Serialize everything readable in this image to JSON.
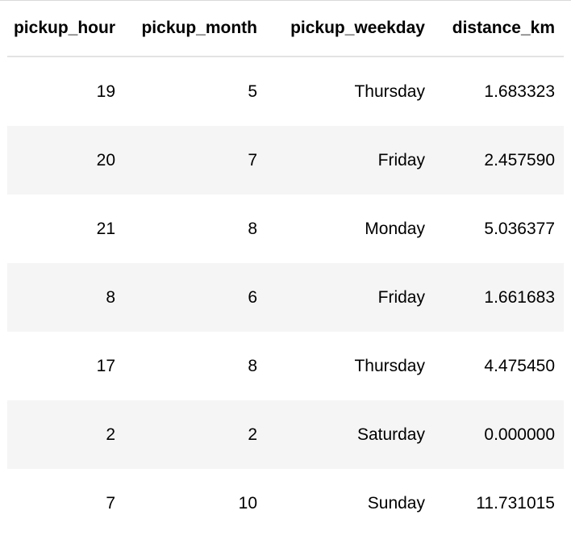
{
  "table": {
    "columns": [
      "pickup_hour",
      "pickup_month",
      "pickup_weekday",
      "distance_km"
    ],
    "rows": [
      [
        "19",
        "5",
        "Thursday",
        "1.683323"
      ],
      [
        "20",
        "7",
        "Friday",
        "2.457590"
      ],
      [
        "21",
        "8",
        "Monday",
        "5.036377"
      ],
      [
        "8",
        "6",
        "Friday",
        "1.661683"
      ],
      [
        "17",
        "8",
        "Thursday",
        "4.475450"
      ],
      [
        "2",
        "2",
        "Saturday",
        "0.000000"
      ],
      [
        "7",
        "10",
        "Sunday",
        "11.731015"
      ]
    ]
  },
  "colors": {
    "striped_row_background": "#f5f5f5",
    "header_border": "#e3e3e3"
  }
}
